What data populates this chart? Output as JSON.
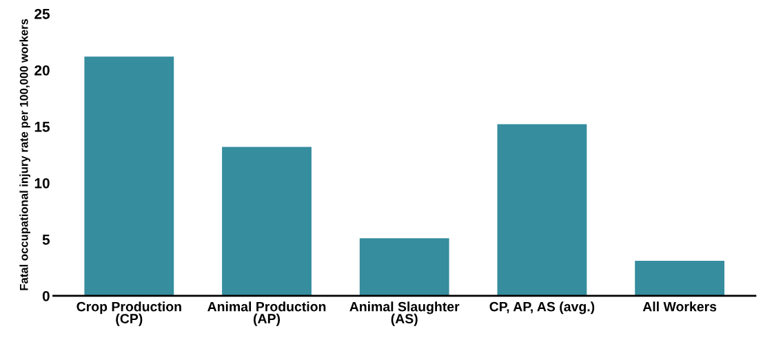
{
  "chart_data": {
    "type": "bar",
    "ylabel": "Fatal occupational injury rate per 100,000 workers",
    "categories": [
      "Crop Production\n(CP)",
      "Animal Production\n(AP)",
      "Animal Slaughter\n(AS)",
      "CP, AP, AS (avg.)",
      "All Workers"
    ],
    "values": [
      21.2,
      13.2,
      5.1,
      15.2,
      3.1
    ],
    "color": "#358d9e",
    "ylim": [
      0,
      25
    ],
    "yticks": [
      0,
      5,
      10,
      15,
      20,
      25
    ],
    "grid": false
  }
}
